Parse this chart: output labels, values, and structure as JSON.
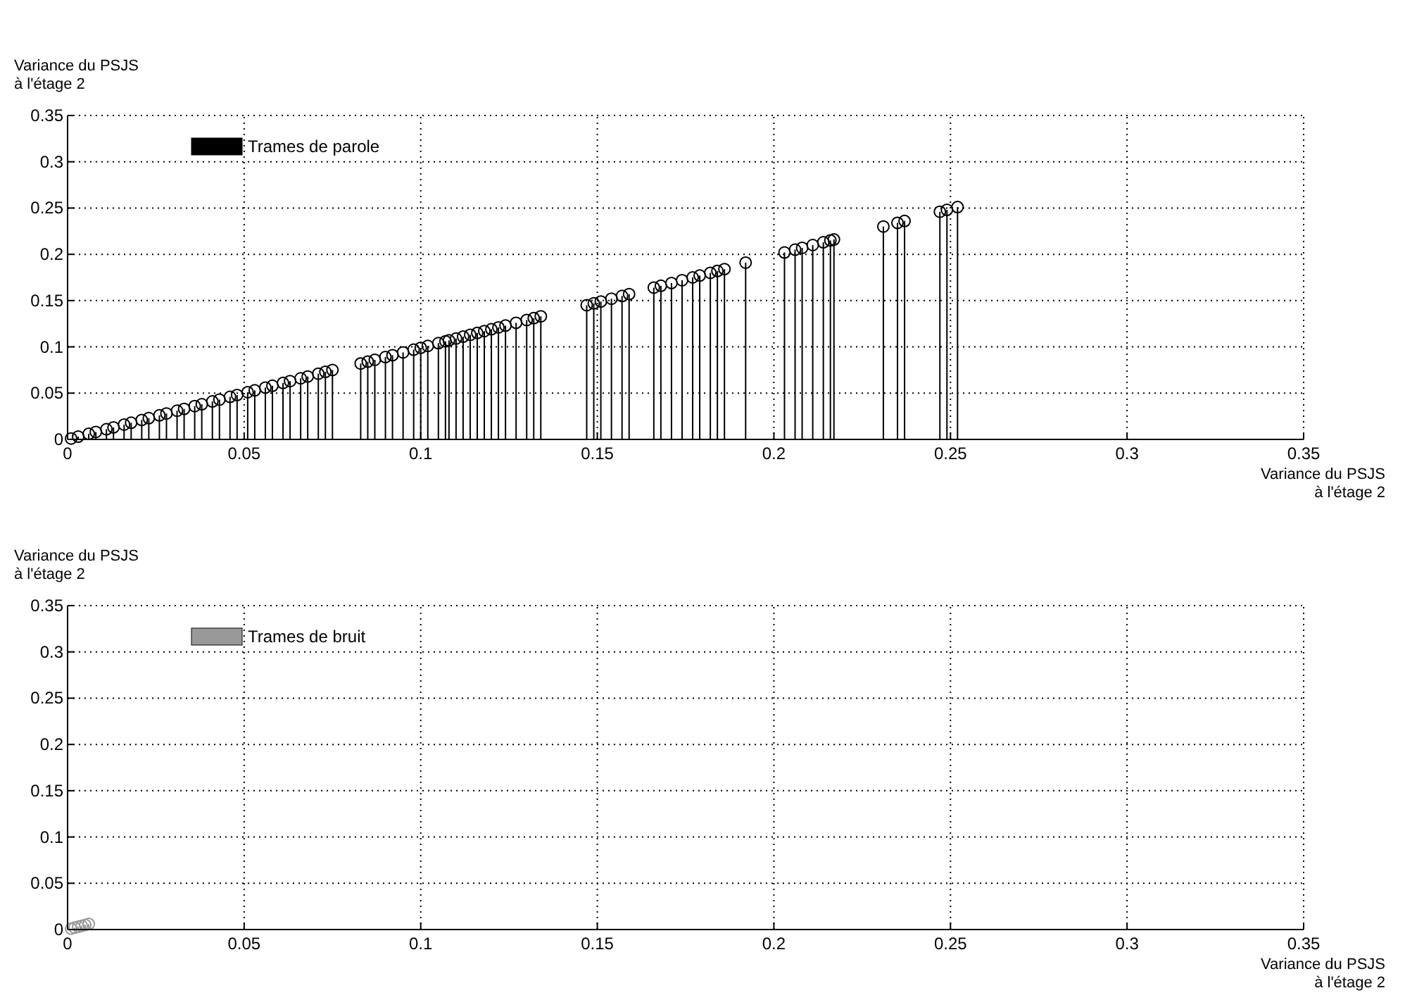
{
  "chart_data": [
    {
      "type": "lollipop",
      "xlabel": "Variance du PSJS\nà l'étage 2",
      "ylabel": "Variance du PSJS\nà l'étage 2",
      "xlim": [
        0,
        0.35
      ],
      "ylim": [
        0,
        0.35
      ],
      "xticks": [
        0,
        0.05,
        0.1,
        0.15,
        0.2,
        0.25,
        0.3,
        0.35
      ],
      "yticks": [
        0,
        0.05,
        0.1,
        0.15,
        0.2,
        0.25,
        0.3,
        0.35
      ],
      "grid": true,
      "legend": "top left",
      "marker": "circle",
      "series": [
        {
          "name": "Trames de parole",
          "color": "#000000",
          "x": [
            0.001,
            0.003,
            0.006,
            0.008,
            0.011,
            0.013,
            0.016,
            0.018,
            0.021,
            0.023,
            0.026,
            0.028,
            0.031,
            0.033,
            0.036,
            0.038,
            0.041,
            0.043,
            0.046,
            0.048,
            0.051,
            0.053,
            0.056,
            0.058,
            0.061,
            0.063,
            0.066,
            0.068,
            0.071,
            0.073,
            0.075,
            0.083,
            0.085,
            0.087,
            0.09,
            0.092,
            0.095,
            0.098,
            0.1,
            0.102,
            0.105,
            0.107,
            0.108,
            0.11,
            0.112,
            0.114,
            0.116,
            0.118,
            0.12,
            0.122,
            0.124,
            0.127,
            0.13,
            0.132,
            0.134,
            0.147,
            0.149,
            0.151,
            0.154,
            0.157,
            0.159,
            0.166,
            0.168,
            0.171,
            0.174,
            0.177,
            0.179,
            0.182,
            0.184,
            0.186,
            0.192,
            0.203,
            0.206,
            0.208,
            0.211,
            0.214,
            0.216,
            0.217,
            0.231,
            0.235,
            0.237,
            0.247,
            0.249,
            0.252
          ],
          "values": [
            0.001,
            0.003,
            0.006,
            0.008,
            0.011,
            0.013,
            0.016,
            0.018,
            0.021,
            0.023,
            0.026,
            0.028,
            0.031,
            0.033,
            0.036,
            0.038,
            0.041,
            0.043,
            0.046,
            0.048,
            0.051,
            0.053,
            0.056,
            0.058,
            0.061,
            0.063,
            0.066,
            0.068,
            0.071,
            0.073,
            0.075,
            0.082,
            0.084,
            0.086,
            0.089,
            0.091,
            0.094,
            0.097,
            0.099,
            0.101,
            0.104,
            0.106,
            0.107,
            0.109,
            0.111,
            0.113,
            0.115,
            0.117,
            0.119,
            0.121,
            0.123,
            0.126,
            0.129,
            0.131,
            0.133,
            0.145,
            0.147,
            0.149,
            0.152,
            0.155,
            0.157,
            0.164,
            0.166,
            0.169,
            0.172,
            0.175,
            0.177,
            0.18,
            0.182,
            0.184,
            0.191,
            0.202,
            0.205,
            0.207,
            0.21,
            0.213,
            0.215,
            0.216,
            0.23,
            0.234,
            0.236,
            0.246,
            0.248,
            0.251
          ]
        }
      ]
    },
    {
      "type": "lollipop",
      "xlabel": "Variance du PSJS\nà l'étage 2",
      "ylabel": "Variance du PSJS\nà l'étage 2",
      "xlim": [
        0,
        0.35
      ],
      "ylim": [
        0,
        0.35
      ],
      "xticks": [
        0,
        0.05,
        0.1,
        0.15,
        0.2,
        0.25,
        0.3,
        0.35
      ],
      "yticks": [
        0,
        0.05,
        0.1,
        0.15,
        0.2,
        0.25,
        0.3,
        0.35
      ],
      "grid": true,
      "legend": "top left",
      "marker": "circle",
      "series": [
        {
          "name": "Trames de bruit",
          "color": "#999999",
          "x": [
            0.001,
            0.002,
            0.003,
            0.004,
            0.005,
            0.006
          ],
          "values": [
            0.001,
            0.002,
            0.003,
            0.004,
            0.005,
            0.006
          ]
        }
      ]
    }
  ]
}
